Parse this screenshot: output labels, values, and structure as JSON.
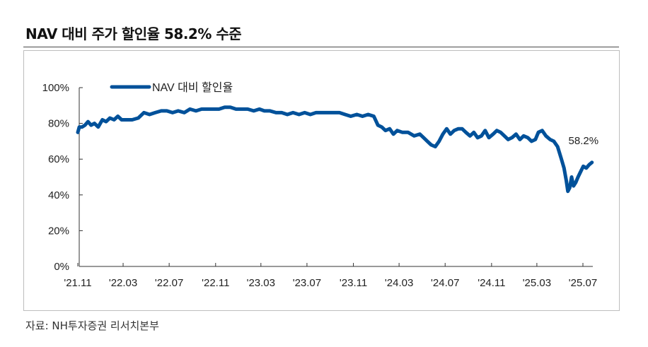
{
  "page": {
    "title": "NAV 대비 주가 할인율 58.2% 수준",
    "source": "자료: NH투자증권 리서치본부"
  },
  "colors": {
    "series": "#00519a",
    "axis": "#333333",
    "text": "#222222"
  },
  "chart_data": {
    "type": "line",
    "title": "",
    "xlabel": "",
    "ylabel": "",
    "ylim": [
      0,
      100
    ],
    "y_ticks": [
      0,
      20,
      40,
      60,
      80,
      100
    ],
    "y_tick_labels": [
      "0%",
      "20%",
      "40%",
      "60%",
      "80%",
      "100%"
    ],
    "x_tick_dates": [
      "2021-11-01",
      "2022-03-01",
      "2022-07-01",
      "2022-11-01",
      "2023-03-01",
      "2023-07-01",
      "2023-11-01",
      "2024-03-01",
      "2024-07-01",
      "2024-11-01",
      "2025-03-01",
      "2025-07-01"
    ],
    "x_tick_labels": [
      "'21.11",
      "'22.03",
      "'22.07",
      "'22.11",
      "'23.03",
      "'23.07",
      "'23.11",
      "'24.03",
      "'24.07",
      "'24.11",
      "'25.03",
      "'25.07"
    ],
    "grid": false,
    "legend_position": "top-left",
    "annotation": {
      "text": "58.2%",
      "date": "2025-07-25",
      "value": 58.2
    },
    "series": [
      {
        "name": "NAV 대비 할인율",
        "points": [
          [
            "2021-11-01",
            75
          ],
          [
            "2021-11-05",
            78
          ],
          [
            "2021-11-12",
            78
          ],
          [
            "2021-11-20",
            79
          ],
          [
            "2021-11-28",
            81
          ],
          [
            "2021-12-06",
            79
          ],
          [
            "2021-12-15",
            80
          ],
          [
            "2021-12-25",
            78
          ],
          [
            "2022-01-05",
            82
          ],
          [
            "2022-01-15",
            81
          ],
          [
            "2022-01-25",
            83
          ],
          [
            "2022-02-05",
            82
          ],
          [
            "2022-02-15",
            84
          ],
          [
            "2022-02-25",
            82
          ],
          [
            "2022-03-10",
            82
          ],
          [
            "2022-03-25",
            82
          ],
          [
            "2022-04-10",
            83
          ],
          [
            "2022-04-25",
            86
          ],
          [
            "2022-05-10",
            85
          ],
          [
            "2022-05-25",
            86
          ],
          [
            "2022-06-10",
            87
          ],
          [
            "2022-06-25",
            87
          ],
          [
            "2022-07-10",
            86
          ],
          [
            "2022-07-25",
            87
          ],
          [
            "2022-08-10",
            86
          ],
          [
            "2022-08-25",
            88
          ],
          [
            "2022-09-10",
            87
          ],
          [
            "2022-09-25",
            88
          ],
          [
            "2022-10-10",
            88
          ],
          [
            "2022-10-25",
            88
          ],
          [
            "2022-11-10",
            88
          ],
          [
            "2022-11-25",
            89
          ],
          [
            "2022-12-10",
            89
          ],
          [
            "2022-12-25",
            88
          ],
          [
            "2023-01-10",
            88
          ],
          [
            "2023-01-25",
            88
          ],
          [
            "2023-02-10",
            87
          ],
          [
            "2023-02-25",
            88
          ],
          [
            "2023-03-10",
            87
          ],
          [
            "2023-03-25",
            87
          ],
          [
            "2023-04-10",
            86
          ],
          [
            "2023-04-25",
            86
          ],
          [
            "2023-05-10",
            85
          ],
          [
            "2023-05-25",
            86
          ],
          [
            "2023-06-10",
            85
          ],
          [
            "2023-06-25",
            86
          ],
          [
            "2023-07-10",
            85
          ],
          [
            "2023-07-25",
            86
          ],
          [
            "2023-08-10",
            86
          ],
          [
            "2023-08-25",
            86
          ],
          [
            "2023-09-10",
            86
          ],
          [
            "2023-09-25",
            86
          ],
          [
            "2023-10-10",
            85
          ],
          [
            "2023-10-25",
            84
          ],
          [
            "2023-11-10",
            85
          ],
          [
            "2023-11-25",
            84
          ],
          [
            "2023-12-10",
            85
          ],
          [
            "2023-12-25",
            84
          ],
          [
            "2024-01-05",
            79
          ],
          [
            "2024-01-15",
            78
          ],
          [
            "2024-01-25",
            76
          ],
          [
            "2024-02-05",
            77
          ],
          [
            "2024-02-15",
            74
          ],
          [
            "2024-02-25",
            76
          ],
          [
            "2024-03-10",
            75
          ],
          [
            "2024-03-25",
            75
          ],
          [
            "2024-04-10",
            73
          ],
          [
            "2024-04-25",
            74
          ],
          [
            "2024-05-05",
            72
          ],
          [
            "2024-05-15",
            70
          ],
          [
            "2024-05-25",
            68
          ],
          [
            "2024-06-05",
            67
          ],
          [
            "2024-06-15",
            70
          ],
          [
            "2024-06-25",
            74
          ],
          [
            "2024-07-05",
            77
          ],
          [
            "2024-07-15",
            74
          ],
          [
            "2024-07-25",
            76
          ],
          [
            "2024-08-05",
            77
          ],
          [
            "2024-08-15",
            77
          ],
          [
            "2024-08-25",
            75
          ],
          [
            "2024-09-05",
            73
          ],
          [
            "2024-09-15",
            75
          ],
          [
            "2024-09-25",
            72
          ],
          [
            "2024-10-05",
            73
          ],
          [
            "2024-10-15",
            76
          ],
          [
            "2024-10-25",
            72
          ],
          [
            "2024-11-05",
            74
          ],
          [
            "2024-11-15",
            76
          ],
          [
            "2024-11-25",
            75
          ],
          [
            "2024-12-05",
            73
          ],
          [
            "2024-12-15",
            71
          ],
          [
            "2024-12-25",
            72
          ],
          [
            "2025-01-05",
            74
          ],
          [
            "2025-01-15",
            71
          ],
          [
            "2025-01-25",
            73
          ],
          [
            "2025-02-05",
            72
          ],
          [
            "2025-02-15",
            70
          ],
          [
            "2025-02-25",
            71
          ],
          [
            "2025-03-05",
            75
          ],
          [
            "2025-03-15",
            76
          ],
          [
            "2025-03-25",
            73
          ],
          [
            "2025-04-05",
            71
          ],
          [
            "2025-04-15",
            70
          ],
          [
            "2025-04-25",
            67
          ],
          [
            "2025-05-05",
            60
          ],
          [
            "2025-05-12",
            55
          ],
          [
            "2025-05-18",
            48
          ],
          [
            "2025-05-22",
            42
          ],
          [
            "2025-05-27",
            44
          ],
          [
            "2025-06-01",
            50
          ],
          [
            "2025-06-06",
            45
          ],
          [
            "2025-06-12",
            47
          ],
          [
            "2025-06-18",
            50
          ],
          [
            "2025-06-25",
            53
          ],
          [
            "2025-07-02",
            56
          ],
          [
            "2025-07-10",
            55
          ],
          [
            "2025-07-18",
            57
          ],
          [
            "2025-07-25",
            58.2
          ]
        ]
      }
    ]
  }
}
